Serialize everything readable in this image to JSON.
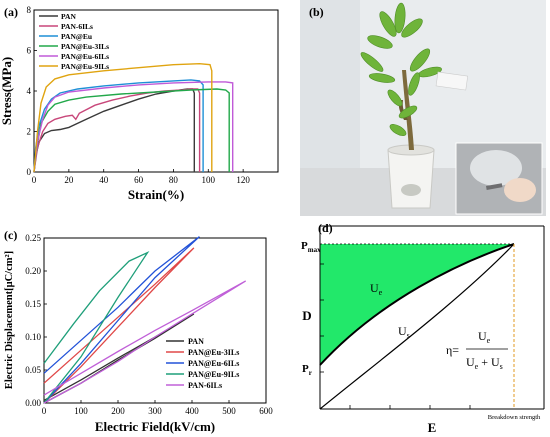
{
  "panels": {
    "a": {
      "label": "(a)"
    },
    "b": {
      "label": "(b)"
    },
    "c": {
      "label": "(c)"
    },
    "d": {
      "label": "(d)"
    }
  },
  "chart_data": [
    {
      "panel": "a",
      "type": "line",
      "xlabel": "Strain(%)",
      "ylabel": "Stress(MPa)",
      "xlim": [
        0,
        140
      ],
      "ylim": [
        0,
        8
      ],
      "xticks": [
        0,
        20,
        40,
        60,
        80,
        100,
        120
      ],
      "yticks": [
        0,
        2,
        4,
        6,
        8
      ],
      "legend_position": "top-left",
      "series": [
        {
          "name": "PAN",
          "color": "#3a3a3a",
          "points": [
            [
              0,
              0
            ],
            [
              1,
              0.8
            ],
            [
              3,
              1.5
            ],
            [
              6,
              1.9
            ],
            [
              10,
              2.05
            ],
            [
              15,
              2.1
            ],
            [
              20,
              2.2
            ],
            [
              30,
              2.6
            ],
            [
              40,
              3.0
            ],
            [
              50,
              3.3
            ],
            [
              60,
              3.6
            ],
            [
              70,
              3.85
            ],
            [
              80,
              4.0
            ],
            [
              88,
              4.1
            ],
            [
              91,
              4.1
            ],
            [
              92,
              3.9
            ],
            [
              92,
              0
            ]
          ]
        },
        {
          "name": "PAN-6ILs",
          "color": "#c8477a",
          "points": [
            [
              0,
              0
            ],
            [
              2,
              1.2
            ],
            [
              5,
              2.0
            ],
            [
              8,
              2.4
            ],
            [
              12,
              2.6
            ],
            [
              18,
              2.75
            ],
            [
              22,
              2.8
            ],
            [
              24,
              2.6
            ],
            [
              26,
              2.9
            ],
            [
              35,
              3.3
            ],
            [
              45,
              3.55
            ],
            [
              55,
              3.75
            ],
            [
              65,
              3.9
            ],
            [
              75,
              4.0
            ],
            [
              85,
              4.05
            ],
            [
              90,
              4.1
            ],
            [
              94,
              4.1
            ],
            [
              95,
              3.9
            ],
            [
              95,
              0
            ]
          ]
        },
        {
          "name": "PAN@Eu",
          "color": "#1e8fd6",
          "points": [
            [
              0,
              0
            ],
            [
              1,
              1.2
            ],
            [
              3,
              2.3
            ],
            [
              6,
              3.1
            ],
            [
              10,
              3.6
            ],
            [
              15,
              3.9
            ],
            [
              25,
              4.1
            ],
            [
              40,
              4.25
            ],
            [
              60,
              4.4
            ],
            [
              80,
              4.5
            ],
            [
              90,
              4.55
            ],
            [
              95,
              4.5
            ],
            [
              97,
              4.3
            ],
            [
              97,
              0
            ]
          ]
        },
        {
          "name": "PAN@Eu-3ILs",
          "color": "#22a84a",
          "points": [
            [
              0,
              0
            ],
            [
              2,
              1.4
            ],
            [
              4,
              2.4
            ],
            [
              8,
              3.0
            ],
            [
              12,
              3.35
            ],
            [
              20,
              3.55
            ],
            [
              30,
              3.7
            ],
            [
              50,
              3.85
            ],
            [
              70,
              3.95
            ],
            [
              90,
              4.05
            ],
            [
              105,
              4.1
            ],
            [
              110,
              4.05
            ],
            [
              112,
              3.9
            ],
            [
              112,
              0
            ]
          ]
        },
        {
          "name": "PAN@Eu-6ILs",
          "color": "#c05ad8",
          "points": [
            [
              0,
              0
            ],
            [
              2,
              1.5
            ],
            [
              5,
              2.6
            ],
            [
              8,
              3.3
            ],
            [
              12,
              3.7
            ],
            [
              20,
              3.95
            ],
            [
              40,
              4.15
            ],
            [
              60,
              4.3
            ],
            [
              80,
              4.4
            ],
            [
              100,
              4.45
            ],
            [
              110,
              4.45
            ],
            [
              114,
              4.4
            ],
            [
              114,
              0
            ]
          ]
        },
        {
          "name": "PAN@Eu-9ILs",
          "color": "#e0a410",
          "points": [
            [
              0,
              0
            ],
            [
              2,
              2.0
            ],
            [
              4,
              3.4
            ],
            [
              7,
              4.2
            ],
            [
              12,
              4.6
            ],
            [
              20,
              4.8
            ],
            [
              40,
              5.0
            ],
            [
              60,
              5.15
            ],
            [
              80,
              5.3
            ],
            [
              95,
              5.35
            ],
            [
              101,
              5.3
            ],
            [
              102,
              5.0
            ],
            [
              102,
              0
            ]
          ]
        }
      ]
    },
    {
      "panel": "c",
      "type": "line",
      "xlabel": "Electric Field(kV/cm)",
      "ylabel": "Electric Displacement[μC/cm²]",
      "xlim": [
        0,
        600
      ],
      "ylim": [
        0,
        0.25
      ],
      "xticks": [
        0,
        100,
        200,
        300,
        400,
        500,
        600
      ],
      "yticks": [
        0.0,
        0.05,
        0.1,
        0.15,
        0.2,
        0.25
      ],
      "ytick_labels": [
        "0.00",
        "0.05",
        "0.10",
        "0.15",
        "0.20",
        "0.25"
      ],
      "legend_position": "bottom-right",
      "series": [
        {
          "name": "PAN",
          "color": "#333333",
          "up": [
            [
              0,
              0
            ],
            [
              100,
              0.03
            ],
            [
              200,
              0.065
            ],
            [
              300,
              0.098
            ],
            [
              405,
              0.135
            ]
          ],
          "down": [
            [
              405,
              0.135
            ],
            [
              300,
              0.1
            ],
            [
              200,
              0.068
            ],
            [
              100,
              0.035
            ],
            [
              0,
              0.004
            ]
          ]
        },
        {
          "name": "PAN@Eu-3ILs",
          "color": "#e04848",
          "up": [
            [
              0,
              0
            ],
            [
              100,
              0.055
            ],
            [
              200,
              0.115
            ],
            [
              300,
              0.175
            ],
            [
              405,
              0.235
            ]
          ],
          "down": [
            [
              405,
              0.235
            ],
            [
              300,
              0.18
            ],
            [
              200,
              0.13
            ],
            [
              100,
              0.08
            ],
            [
              0,
              0.03
            ]
          ]
        },
        {
          "name": "PAN@Eu-6ILs",
          "color": "#2252d8",
          "up": [
            [
              0,
              0
            ],
            [
              100,
              0.06
            ],
            [
              200,
              0.125
            ],
            [
              300,
              0.19
            ],
            [
              420,
              0.252
            ]
          ],
          "down": [
            [
              420,
              0.252
            ],
            [
              300,
              0.2
            ],
            [
              200,
              0.145
            ],
            [
              100,
              0.095
            ],
            [
              0,
              0.045
            ]
          ]
        },
        {
          "name": "PAN@Eu-9ILs",
          "color": "#1f9f7a",
          "up": [
            [
              0,
              0
            ],
            [
              100,
              0.07
            ],
            [
              200,
              0.16
            ],
            [
              280,
              0.228
            ]
          ],
          "down": [
            [
              280,
              0.228
            ],
            [
              230,
              0.215
            ],
            [
              150,
              0.17
            ],
            [
              80,
              0.12
            ],
            [
              0,
              0.06
            ]
          ]
        },
        {
          "name": "PAN-6ILs",
          "color": "#c060d8",
          "up": [
            [
              0,
              0
            ],
            [
              100,
              0.03
            ],
            [
              200,
              0.063
            ],
            [
              300,
              0.1
            ],
            [
              400,
              0.135
            ],
            [
              545,
              0.185
            ]
          ],
          "down": [
            [
              545,
              0.185
            ],
            [
              400,
              0.14
            ],
            [
              300,
              0.11
            ],
            [
              200,
              0.078
            ],
            [
              100,
              0.045
            ],
            [
              0,
              0.012
            ]
          ]
        }
      ]
    },
    {
      "panel": "d",
      "type": "schematic",
      "xlabel": "E",
      "ylabel": "D",
      "ytick_labels": [
        "P_max",
        "P_r"
      ],
      "xtick_label": "Breakdown strength",
      "region_labels": [
        "U_e",
        "U_s"
      ],
      "fill_color": "#22e86a",
      "equation": {
        "lhs": "η=",
        "numerator": "U_e",
        "denominator": "U_e + U_s"
      }
    }
  ]
}
